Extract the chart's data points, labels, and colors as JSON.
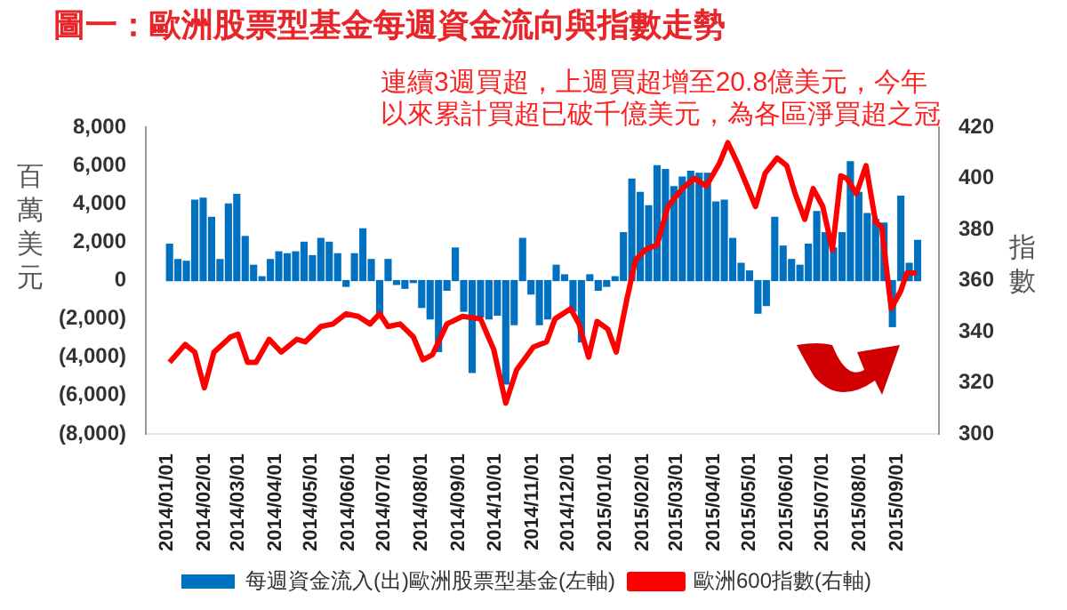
{
  "chart_data": {
    "type": "bar",
    "title": "圖一：歐洲股票型基金每週資金流向與指數走勢",
    "ylabel": "百萬美元",
    "y2label": "指數",
    "annotations": [
      "連續3週買超，上週買超增至20.8億美元，今年以來累計買超已破千億美元，為各區淨買超之冠"
    ],
    "xlim": [
      "2013-12-30",
      "2015-09-20"
    ],
    "xticks": [
      {
        "value": "2014-01-01",
        "label": "2014/01/01"
      },
      {
        "value": "2014-02-01",
        "label": "2014/02/01"
      },
      {
        "value": "2014-03-01",
        "label": "2014/03/01"
      },
      {
        "value": "2014-04-01",
        "label": "2014/04/01"
      },
      {
        "value": "2014-05-01",
        "label": "2014/05/01"
      },
      {
        "value": "2014-06-01",
        "label": "2014/06/01"
      },
      {
        "value": "2014-07-01",
        "label": "2014/07/01"
      },
      {
        "value": "2014-08-01",
        "label": "2014/08/01"
      },
      {
        "value": "2014-09-01",
        "label": "2014/09/01"
      },
      {
        "value": "2014-10-01",
        "label": "2014/10/01"
      },
      {
        "value": "2014-11-01",
        "label": "2014/11/01"
      },
      {
        "value": "2014-12-01",
        "label": "2014/12/01"
      },
      {
        "value": "2015-01-01",
        "label": "2015/01/01"
      },
      {
        "value": "2015-02-01",
        "label": "2015/02/01"
      },
      {
        "value": "2015-03-01",
        "label": "2015/03/01"
      },
      {
        "value": "2015-04-01",
        "label": "2015/04/01"
      },
      {
        "value": "2015-05-01",
        "label": "2015/05/01"
      },
      {
        "value": "2015-06-01",
        "label": "2015/06/01"
      },
      {
        "value": "2015-07-01",
        "label": "2015/07/01"
      },
      {
        "value": "2015-08-01",
        "label": "2015/08/01"
      },
      {
        "value": "2015-09-01",
        "label": "2015/09/01"
      }
    ],
    "ylim": [
      -8000,
      8000
    ],
    "yticks": [
      {
        "value": -8000,
        "label": "(8,000)"
      },
      {
        "value": -6000,
        "label": "(6,000)"
      },
      {
        "value": -4000,
        "label": "(4,000)"
      },
      {
        "value": -2000,
        "label": "(2,000)"
      },
      {
        "value": 0,
        "label": "0"
      },
      {
        "value": 2000,
        "label": "2,000"
      },
      {
        "value": 4000,
        "label": "4,000"
      },
      {
        "value": 6000,
        "label": "6,000"
      },
      {
        "value": 8000,
        "label": "8,000"
      }
    ],
    "y2lim": [
      300,
      420
    ],
    "y2ticks": [
      300,
      320,
      340,
      360,
      380,
      400,
      420
    ],
    "grid": false,
    "legend": "bottom",
    "marker": "none",
    "line_style": "solid",
    "series": [
      {
        "name": "每週資金流入(出)歐洲股票型基金(左軸)",
        "color": "#0070c0",
        "x": [
          "2014-01-03",
          "2014-01-10",
          "2014-01-17",
          "2014-01-24",
          "2014-01-31",
          "2014-02-07",
          "2014-02-14",
          "2014-02-21",
          "2014-02-28",
          "2014-03-07",
          "2014-03-14",
          "2014-03-21",
          "2014-03-28",
          "2014-04-04",
          "2014-04-11",
          "2014-04-18",
          "2014-04-25",
          "2014-05-02",
          "2014-05-09",
          "2014-05-16",
          "2014-05-23",
          "2014-05-30",
          "2014-06-06",
          "2014-06-13",
          "2014-06-20",
          "2014-06-27",
          "2014-07-04",
          "2014-07-11",
          "2014-07-18",
          "2014-07-25",
          "2014-08-01",
          "2014-08-08",
          "2014-08-15",
          "2014-08-22",
          "2014-08-29",
          "2014-09-05",
          "2014-09-12",
          "2014-09-19",
          "2014-09-26",
          "2014-10-03",
          "2014-10-10",
          "2014-10-17",
          "2014-10-24",
          "2014-10-31",
          "2014-11-07",
          "2014-11-14",
          "2014-11-21",
          "2014-11-28",
          "2014-12-05",
          "2014-12-12",
          "2014-12-19",
          "2014-12-26",
          "2015-01-02",
          "2015-01-09",
          "2015-01-16",
          "2015-01-23",
          "2015-01-30",
          "2015-02-06",
          "2015-02-13",
          "2015-02-20",
          "2015-02-27",
          "2015-03-06",
          "2015-03-13",
          "2015-03-20",
          "2015-03-27",
          "2015-04-03",
          "2015-04-10",
          "2015-04-17",
          "2015-04-24",
          "2015-05-01",
          "2015-05-08",
          "2015-05-15",
          "2015-05-22",
          "2015-05-29",
          "2015-06-05",
          "2015-06-12",
          "2015-06-19",
          "2015-06-26",
          "2015-07-03",
          "2015-07-10",
          "2015-07-17",
          "2015-07-24",
          "2015-07-31",
          "2015-08-07",
          "2015-08-14",
          "2015-08-21",
          "2015-08-28",
          "2015-09-04",
          "2015-09-11",
          "2015-09-18"
        ],
        "values": [
          1900,
          1100,
          1000,
          4200,
          4300,
          3300,
          1100,
          4000,
          4500,
          2300,
          800,
          200,
          1100,
          1500,
          1400,
          1500,
          2000,
          1300,
          2200,
          2000,
          1400,
          -300,
          1400,
          2700,
          1100,
          -1700,
          1100,
          -200,
          -400,
          -100,
          -1400,
          -2000,
          -3700,
          -500,
          1700,
          -1600,
          -4800,
          -1900,
          -2000,
          -1800,
          -5400,
          -2300,
          2200,
          -700,
          -2300,
          -2000,
          800,
          300,
          -1600,
          -3200,
          300,
          -500,
          -300,
          200,
          2500,
          5300,
          4600,
          3900,
          6000,
          5800,
          4900,
          5400,
          5700,
          5600,
          5600,
          4100,
          4200,
          2200,
          900,
          500,
          -1700,
          -1300,
          3300,
          1800,
          1100,
          800,
          1900,
          3600,
          2500,
          1700,
          2500,
          6200,
          4600,
          3500,
          3200,
          3000,
          -2400,
          4400,
          900,
          2100
        ]
      },
      {
        "type": "line",
        "name": "歐洲600指數(右軸)",
        "color": "#ff0000",
        "axis": "y2",
        "x": [
          "2014-01-03",
          "2014-01-16",
          "2014-01-24",
          "2014-02-01",
          "2014-02-09",
          "2014-02-23",
          "2014-03-01",
          "2014-03-09",
          "2014-03-16",
          "2014-03-27",
          "2014-04-06",
          "2014-04-19",
          "2014-04-26",
          "2014-05-09",
          "2014-05-19",
          "2014-05-30",
          "2014-06-09",
          "2014-06-19",
          "2014-06-27",
          "2014-07-04",
          "2014-07-14",
          "2014-07-25",
          "2014-08-02",
          "2014-08-10",
          "2014-08-22",
          "2014-09-04",
          "2014-09-19",
          "2014-09-30",
          "2014-10-10",
          "2014-10-19",
          "2014-11-02",
          "2014-11-13",
          "2014-11-20",
          "2014-12-03",
          "2014-12-10",
          "2014-12-18",
          "2014-12-25",
          "2015-01-03",
          "2015-01-10",
          "2015-01-19",
          "2015-01-26",
          "2015-02-03",
          "2015-02-13",
          "2015-02-22",
          "2015-03-06",
          "2015-03-16",
          "2015-03-26",
          "2015-04-06",
          "2015-04-13",
          "2015-04-21",
          "2015-04-29",
          "2015-05-06",
          "2015-05-14",
          "2015-05-24",
          "2015-06-01",
          "2015-06-08",
          "2015-06-16",
          "2015-06-23",
          "2015-07-01",
          "2015-07-09",
          "2015-07-16",
          "2015-07-21",
          "2015-07-29",
          "2015-08-06",
          "2015-08-14",
          "2015-08-19",
          "2015-08-27",
          "2015-09-04",
          "2015-09-09",
          "2015-09-17"
        ],
        "values": [
          328,
          335,
          332,
          318,
          332,
          338,
          339,
          328,
          328,
          337,
          332,
          337,
          336,
          342,
          343,
          347,
          346,
          343,
          347,
          342,
          343,
          338,
          329,
          331,
          343,
          346,
          345,
          333,
          312,
          325,
          334,
          336,
          345,
          349,
          343,
          330,
          344,
          341,
          332,
          353,
          368,
          372,
          374,
          389,
          396,
          400,
          397,
          406,
          414,
          406,
          397,
          389,
          402,
          408,
          405,
          394,
          384,
          396,
          389,
          372,
          401,
          400,
          394,
          405,
          383,
          381,
          349,
          356,
          363,
          363
        ]
      }
    ]
  }
}
